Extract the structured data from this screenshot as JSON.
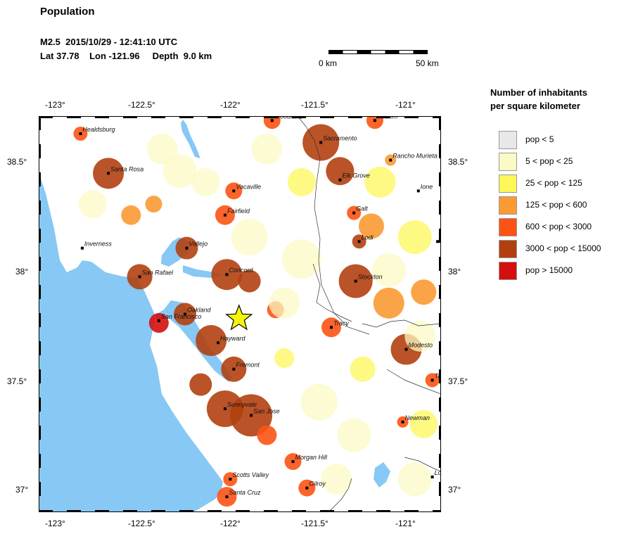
{
  "header": {
    "title": "Population",
    "event_line": "M2.5  2015/10/29 - 12:41:10 UTC",
    "location_line": "Lat 37.78    Lon -121.96     Depth  9.0 km"
  },
  "scalebar": {
    "left_label": "0 km",
    "right_label": "50 km"
  },
  "axes": {
    "lon_ticks": [
      "-123°",
      "-122.5°",
      "-122°",
      "-121.5°",
      "-121°"
    ],
    "lat_ticks": [
      "38.5°",
      "38°",
      "37.5°",
      "37°"
    ],
    "lon_range": [
      -123.11,
      -120.8
    ],
    "lat_range": [
      36.9,
      38.7
    ]
  },
  "epicenter": {
    "lat": 37.78,
    "lon": -121.96
  },
  "legend": {
    "title_line1": "Number of inhabitants",
    "title_line2": "per square kilometer",
    "items": [
      {
        "label": "pop < 5",
        "color": "#e8e8e8"
      },
      {
        "label": "5 < pop < 25",
        "color": "#fbf9c4"
      },
      {
        "label": "25 < pop < 125",
        "color": "#fdf75a"
      },
      {
        "label": "125 < pop < 600",
        "color": "#fb9a33"
      },
      {
        "label": "600 < pop < 3000",
        "color": "#fc5314"
      },
      {
        "label": "3000 < pop < 15000",
        "color": "#b2400f"
      },
      {
        "label": "pop > 15000",
        "color": "#d40f0f"
      }
    ]
  },
  "cities": [
    {
      "name": "Healdsburg",
      "lon": -122.87,
      "lat": 38.62
    },
    {
      "name": "Santa Rosa",
      "lon": -122.71,
      "lat": 38.44
    },
    {
      "name": "Woodland",
      "lon": -121.77,
      "lat": 38.68
    },
    {
      "name": "Folsom",
      "lon": -121.18,
      "lat": 38.68
    },
    {
      "name": "Sacramento",
      "lon": -121.49,
      "lat": 38.58
    },
    {
      "name": "Rancho Murieta",
      "lon": -121.09,
      "lat": 38.5
    },
    {
      "name": "Elk Grove",
      "lon": -121.38,
      "lat": 38.41
    },
    {
      "name": "Vacaville",
      "lon": -121.99,
      "lat": 38.36
    },
    {
      "name": "Ione",
      "lon": -120.93,
      "lat": 38.36
    },
    {
      "name": "Galt",
      "lon": -121.3,
      "lat": 38.26
    },
    {
      "name": "Fairfield",
      "lon": -122.04,
      "lat": 38.25
    },
    {
      "name": "Inverness",
      "lon": -122.86,
      "lat": 38.1
    },
    {
      "name": "Vallejo",
      "lon": -122.26,
      "lat": 38.1
    },
    {
      "name": "Lodi",
      "lon": -121.27,
      "lat": 38.13
    },
    {
      "name": "Ra",
      "lon": -120.82,
      "lat": 38.13
    },
    {
      "name": "Concord",
      "lon": -122.03,
      "lat": 37.98
    },
    {
      "name": "San Rafael",
      "lon": -122.53,
      "lat": 37.97
    },
    {
      "name": "Stockton",
      "lon": -121.29,
      "lat": 37.95
    },
    {
      "name": "Oakland",
      "lon": -122.27,
      "lat": 37.8
    },
    {
      "name": "San Francisco",
      "lon": -122.42,
      "lat": 37.77
    },
    {
      "name": "Tracy",
      "lon": -121.43,
      "lat": 37.74
    },
    {
      "name": "Hayward",
      "lon": -122.08,
      "lat": 37.67
    },
    {
      "name": "Modesto",
      "lon": -121.0,
      "lat": 37.64
    },
    {
      "name": "Fremont",
      "lon": -121.99,
      "lat": 37.55
    },
    {
      "name": "Tu",
      "lon": -120.85,
      "lat": 37.5
    },
    {
      "name": "Sunnyvale",
      "lon": -122.04,
      "lat": 37.37
    },
    {
      "name": "San Jose",
      "lon": -121.89,
      "lat": 37.34
    },
    {
      "name": "Newman",
      "lon": -121.02,
      "lat": 37.31
    },
    {
      "name": "Morgan Hill",
      "lon": -121.65,
      "lat": 37.13
    },
    {
      "name": "Scotts Valley",
      "lon": -122.01,
      "lat": 37.05
    },
    {
      "name": "Gilroy",
      "lon": -121.57,
      "lat": 37.01
    },
    {
      "name": "Santa Cruz",
      "lon": -122.03,
      "lat": 36.97
    },
    {
      "name": "Lo",
      "lon": -120.85,
      "lat": 37.06
    }
  ]
}
